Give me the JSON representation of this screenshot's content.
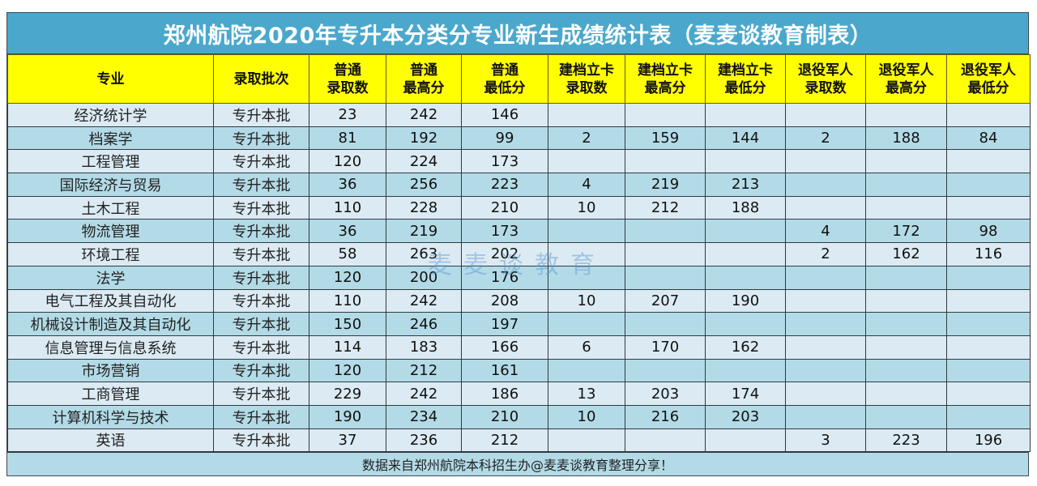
{
  "title": "郑州航院2020年专升本分类分专业新生成绩统计表（麦麦谈教育制表）",
  "colors": {
    "title_bg": "#4aa8cc",
    "header_bg": "#ffff00",
    "row_light": "#dcebf3",
    "row_dark": "#b3dbe7"
  },
  "columns": [
    {
      "line1": "专业",
      "line2": ""
    },
    {
      "line1": "录取批次",
      "line2": ""
    },
    {
      "line1": "普通",
      "line2": "录取数"
    },
    {
      "line1": "普通",
      "line2": "最高分"
    },
    {
      "line1": "普通",
      "line2": "最低分"
    },
    {
      "line1": "建档立卡",
      "line2": "录取数"
    },
    {
      "line1": "建档立卡",
      "line2": "最高分"
    },
    {
      "line1": "建档立卡",
      "line2": "最低分"
    },
    {
      "line1": "退役军人",
      "line2": "录取数"
    },
    {
      "line1": "退役军人",
      "line2": "最高分"
    },
    {
      "line1": "退役军人",
      "line2": "最低分"
    }
  ],
  "rows": [
    [
      "经济统计学",
      "专升本批",
      "23",
      "242",
      "146",
      "",
      "",
      "",
      "",
      "",
      ""
    ],
    [
      "档案学",
      "专升本批",
      "81",
      "192",
      "99",
      "2",
      "159",
      "144",
      "2",
      "188",
      "84"
    ],
    [
      "工程管理",
      "专升本批",
      "120",
      "224",
      "173",
      "",
      "",
      "",
      "",
      "",
      ""
    ],
    [
      "国际经济与贸易",
      "专升本批",
      "36",
      "256",
      "223",
      "4",
      "219",
      "213",
      "",
      "",
      ""
    ],
    [
      "土木工程",
      "专升本批",
      "110",
      "228",
      "210",
      "10",
      "212",
      "188",
      "",
      "",
      ""
    ],
    [
      "物流管理",
      "专升本批",
      "36",
      "219",
      "173",
      "",
      "",
      "",
      "4",
      "172",
      "98"
    ],
    [
      "环境工程",
      "专升本批",
      "58",
      "263",
      "202",
      "",
      "",
      "",
      "2",
      "162",
      "116"
    ],
    [
      "法学",
      "专升本批",
      "120",
      "200",
      "176",
      "",
      "",
      "",
      "",
      "",
      ""
    ],
    [
      "电气工程及其自动化",
      "专升本批",
      "110",
      "242",
      "208",
      "10",
      "207",
      "190",
      "",
      "",
      ""
    ],
    [
      "机械设计制造及其自动化",
      "专升本批",
      "150",
      "246",
      "197",
      "",
      "",
      "",
      "",
      "",
      ""
    ],
    [
      "信息管理与信息系统",
      "专升本批",
      "114",
      "183",
      "166",
      "6",
      "170",
      "162",
      "",
      "",
      ""
    ],
    [
      "市场营销",
      "专升本批",
      "120",
      "212",
      "161",
      "",
      "",
      "",
      "",
      "",
      ""
    ],
    [
      "工商管理",
      "专升本批",
      "229",
      "242",
      "186",
      "13",
      "203",
      "174",
      "",
      "",
      ""
    ],
    [
      "计算机科学与技术",
      "专升本批",
      "190",
      "234",
      "210",
      "10",
      "216",
      "203",
      "",
      "",
      ""
    ],
    [
      "英语",
      "专升本批",
      "37",
      "236",
      "212",
      "",
      "",
      "",
      "3",
      "223",
      "196"
    ]
  ],
  "footer": "数据来自郑州航院本科招生办@麦麦谈教育整理分享！",
  "watermark": "麦麦谈教育"
}
